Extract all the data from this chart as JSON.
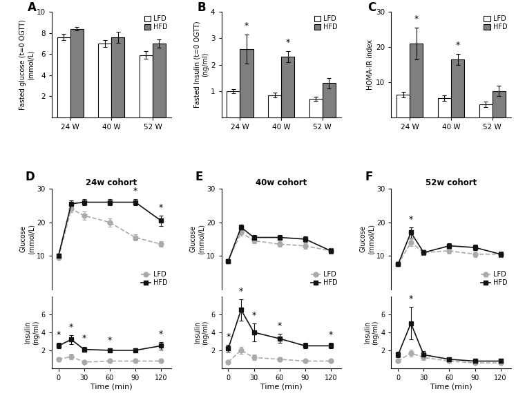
{
  "panel_A": {
    "ylabel1": "Fasted glucose (t=0 OGTT)",
    "ylabel2": "(mmol/L)",
    "categories": [
      "24 W",
      "40 W",
      "52 W"
    ],
    "lfd_vals": [
      7.6,
      7.0,
      5.9
    ],
    "hfd_vals": [
      8.4,
      7.6,
      7.0
    ],
    "lfd_err": [
      0.3,
      0.3,
      0.35
    ],
    "hfd_err": [
      0.15,
      0.5,
      0.4
    ],
    "ylim": [
      0,
      10
    ],
    "yticks": [
      2,
      4,
      6,
      8,
      10
    ],
    "sig": [
      false,
      false,
      false
    ]
  },
  "panel_B": {
    "ylabel1": "Fasted Insulin (t=0 OGTT)",
    "ylabel2": "(ng/ml)",
    "categories": [
      "24 W",
      "40 W",
      "52 W"
    ],
    "lfd_vals": [
      1.0,
      0.85,
      0.7
    ],
    "hfd_vals": [
      2.6,
      2.3,
      1.3
    ],
    "lfd_err": [
      0.08,
      0.08,
      0.08
    ],
    "hfd_err": [
      0.55,
      0.2,
      0.2
    ],
    "ylim": [
      0,
      4
    ],
    "yticks": [
      1,
      2,
      3,
      4
    ],
    "sig": [
      true,
      true,
      false
    ]
  },
  "panel_C": {
    "ylabel1": "HOMA-IR index",
    "ylabel2": "",
    "categories": [
      "24 W",
      "40 W",
      "52 W"
    ],
    "lfd_vals": [
      6.5,
      5.5,
      3.8
    ],
    "hfd_vals": [
      21.0,
      16.5,
      7.5
    ],
    "lfd_err": [
      0.8,
      0.7,
      0.8
    ],
    "hfd_err": [
      4.5,
      1.5,
      1.5
    ],
    "ylim": [
      0,
      30
    ],
    "yticks": [
      10,
      20,
      30
    ],
    "sig": [
      true,
      true,
      false
    ]
  },
  "panel_D": {
    "title": "24w cohort",
    "glucose_lfd": [
      9.5,
      24.0,
      22.0,
      20.0,
      15.5,
      13.5
    ],
    "glucose_hfd": [
      10.0,
      25.5,
      26.0,
      26.0,
      26.0,
      20.5
    ],
    "glucose_lfd_err": [
      0.5,
      1.0,
      1.2,
      1.2,
      1.0,
      0.8
    ],
    "glucose_hfd_err": [
      0.5,
      1.0,
      1.0,
      1.0,
      1.0,
      1.5
    ],
    "insulin_lfd": [
      1.0,
      1.3,
      0.7,
      0.8,
      0.8,
      0.8
    ],
    "insulin_hfd": [
      2.5,
      3.2,
      2.1,
      2.0,
      2.0,
      2.5
    ],
    "insulin_lfd_err": [
      0.2,
      0.3,
      0.15,
      0.15,
      0.15,
      0.15
    ],
    "insulin_hfd_err": [
      0.3,
      0.5,
      0.3,
      0.2,
      0.2,
      0.4
    ],
    "timepoints": [
      0,
      15,
      30,
      60,
      90,
      120
    ],
    "glucose_ylim": [
      0,
      30
    ],
    "glucose_yticks": [
      10,
      20,
      30
    ],
    "insulin_ylim": [
      0,
      8
    ],
    "insulin_yticks": [
      2,
      4,
      6
    ],
    "glucose_sig": [
      false,
      false,
      false,
      false,
      true,
      true
    ],
    "insulin_sig": [
      true,
      true,
      true,
      true,
      false,
      true
    ]
  },
  "panel_E": {
    "title": "40w cohort",
    "glucose_lfd": [
      8.5,
      17.0,
      14.5,
      13.5,
      13.0,
      11.5
    ],
    "glucose_hfd": [
      8.5,
      18.5,
      15.5,
      15.5,
      15.0,
      11.5
    ],
    "glucose_lfd_err": [
      0.5,
      1.0,
      0.8,
      0.8,
      0.8,
      0.8
    ],
    "glucose_hfd_err": [
      0.5,
      0.8,
      0.8,
      0.8,
      0.8,
      0.8
    ],
    "insulin_lfd": [
      0.7,
      2.0,
      1.2,
      1.0,
      0.8,
      0.8
    ],
    "insulin_hfd": [
      2.2,
      6.5,
      4.0,
      3.3,
      2.5,
      2.5
    ],
    "insulin_lfd_err": [
      0.15,
      0.4,
      0.3,
      0.2,
      0.15,
      0.15
    ],
    "insulin_hfd_err": [
      0.4,
      1.2,
      1.0,
      0.5,
      0.3,
      0.3
    ],
    "timepoints": [
      0,
      15,
      30,
      60,
      90,
      120
    ],
    "glucose_ylim": [
      0,
      30
    ],
    "glucose_yticks": [
      10,
      20,
      30
    ],
    "insulin_ylim": [
      0,
      8
    ],
    "insulin_yticks": [
      2,
      4,
      6
    ],
    "glucose_sig": [
      false,
      false,
      false,
      false,
      false,
      false
    ],
    "insulin_sig": [
      true,
      true,
      true,
      true,
      false,
      true
    ]
  },
  "panel_F": {
    "title": "52w cohort",
    "glucose_lfd": [
      7.5,
      14.0,
      11.0,
      11.5,
      10.5,
      10.5
    ],
    "glucose_hfd": [
      7.5,
      17.0,
      11.0,
      13.0,
      12.5,
      10.5
    ],
    "glucose_lfd_err": [
      0.5,
      1.0,
      0.8,
      0.8,
      0.8,
      0.8
    ],
    "glucose_hfd_err": [
      0.5,
      1.5,
      0.8,
      0.8,
      0.8,
      0.8
    ],
    "insulin_lfd": [
      0.8,
      1.7,
      1.2,
      0.8,
      0.6,
      0.6
    ],
    "insulin_hfd": [
      1.5,
      5.0,
      1.5,
      1.0,
      0.8,
      0.8
    ],
    "insulin_lfd_err": [
      0.15,
      0.4,
      0.3,
      0.15,
      0.1,
      0.1
    ],
    "insulin_hfd_err": [
      0.3,
      1.8,
      0.4,
      0.2,
      0.15,
      0.15
    ],
    "timepoints": [
      0,
      15,
      30,
      60,
      90,
      120
    ],
    "glucose_ylim": [
      0,
      30
    ],
    "glucose_yticks": [
      10,
      20,
      30
    ],
    "insulin_ylim": [
      0,
      8
    ],
    "insulin_yticks": [
      2,
      4,
      6
    ],
    "glucose_sig": [
      false,
      true,
      false,
      false,
      false,
      false
    ],
    "insulin_sig": [
      false,
      true,
      false,
      false,
      false,
      false
    ]
  },
  "lfd_color": "#aaaaaa",
  "hfd_color": "#111111",
  "bar_lfd_color": "#ffffff",
  "bar_hfd_color": "#7f7f7f",
  "bar_edge_color": "#000000"
}
